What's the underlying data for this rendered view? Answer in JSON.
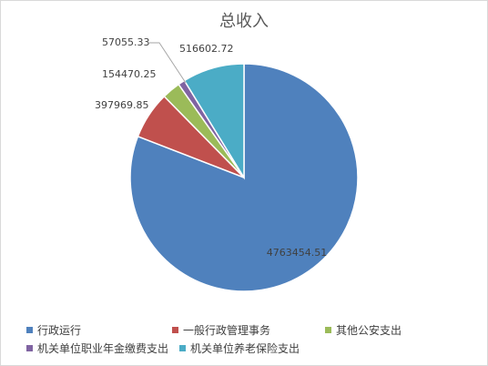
{
  "chart_data": {
    "type": "pie",
    "title": "总收入",
    "categories": [
      "行政运行",
      "一般行政管理事务",
      "其他公安支出",
      "机关单位职业年金缴费支出",
      "机关单位养老保险支出"
    ],
    "values": [
      4763454.51,
      397969.85,
      154470.25,
      57055.33,
      516602.72
    ],
    "value_labels": [
      "4763454.51",
      "397969.85",
      "154470.25",
      "57055.33",
      "516602.72"
    ],
    "colors": [
      "#4F81BD",
      "#C0504D",
      "#9BBB59",
      "#8064A2",
      "#4BACC6"
    ],
    "start_angle": "12 o'clock",
    "direction": "clockwise",
    "legend_position": "bottom"
  }
}
